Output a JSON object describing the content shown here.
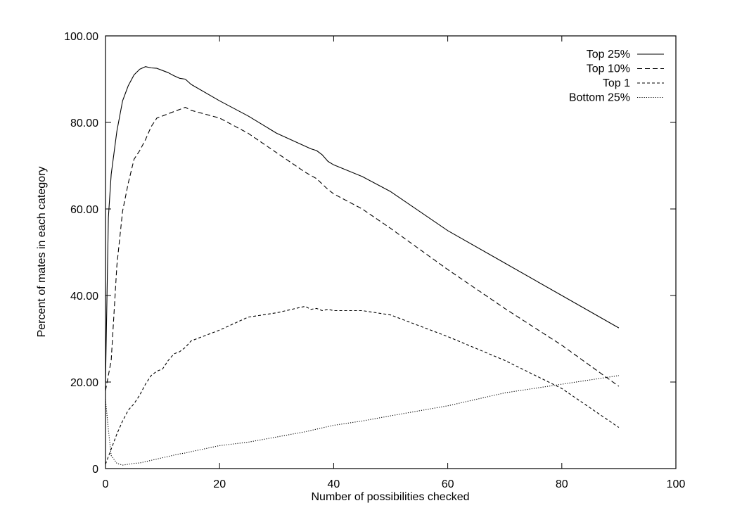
{
  "chart_data": {
    "type": "line",
    "xlabel": "Number of possibilities checked",
    "ylabel": "Percent of mates in each category",
    "xlim": [
      0,
      100
    ],
    "ylim": [
      0,
      100
    ],
    "x_ticks": [
      "0",
      "20",
      "40",
      "60",
      "80",
      "100"
    ],
    "y_ticks": [
      "0",
      "20.00",
      "40.00",
      "60.00",
      "80.00",
      "100.00"
    ],
    "grid": false,
    "legend_position": "top-right",
    "series": [
      {
        "name": "Top 25%",
        "style": "solid",
        "x": [
          0,
          0.5,
          1,
          2,
          3,
          4,
          5,
          6,
          7,
          8,
          9,
          10,
          11,
          12,
          13,
          14,
          15,
          20,
          25,
          30,
          35,
          36,
          37,
          38,
          39,
          40,
          45,
          50,
          60,
          70,
          80,
          90
        ],
        "y": [
          20.0,
          58.0,
          68.0,
          78.0,
          85.0,
          88.5,
          91.0,
          92.3,
          92.9,
          92.6,
          92.5,
          92.0,
          91.5,
          90.8,
          90.2,
          90.0,
          88.8,
          85.0,
          81.5,
          77.5,
          74.5,
          73.9,
          73.5,
          72.5,
          71.0,
          70.2,
          67.5,
          64.0,
          55.0,
          47.5,
          40.0,
          32.5
        ]
      },
      {
        "name": "Top 10%",
        "style": "dashed",
        "x": [
          0,
          1,
          2,
          3,
          4,
          5,
          6,
          7,
          8,
          9,
          10,
          11,
          12,
          13,
          14,
          15,
          20,
          25,
          30,
          35,
          37,
          39,
          40,
          45,
          50,
          60,
          70,
          80,
          90
        ],
        "y": [
          18.0,
          25.0,
          47.0,
          59.5,
          66.0,
          71.5,
          73.5,
          76.0,
          79.0,
          81.0,
          81.5,
          82.0,
          82.5,
          83.0,
          83.5,
          82.8,
          81.0,
          77.5,
          73.0,
          68.5,
          67.0,
          64.5,
          63.5,
          60.0,
          55.5,
          46.0,
          37.0,
          28.5,
          19.0
        ]
      },
      {
        "name": "Top 1",
        "style": "fine-dashed",
        "x": [
          0,
          1,
          2,
          3,
          4,
          5,
          6,
          7,
          8,
          9,
          10,
          11,
          12,
          13,
          14,
          15,
          20,
          25,
          30,
          35,
          36,
          37,
          38,
          39,
          40,
          45,
          50,
          60,
          70,
          80,
          90
        ],
        "y": [
          1.0,
          4.5,
          8.0,
          11.0,
          13.5,
          15.0,
          17.0,
          19.5,
          21.5,
          22.5,
          23.0,
          25.0,
          26.5,
          27.0,
          28.0,
          29.5,
          32.0,
          35.0,
          36.0,
          37.5,
          36.8,
          37.0,
          36.5,
          36.8,
          36.5,
          36.5,
          35.5,
          30.5,
          25.0,
          18.5,
          9.5
        ]
      },
      {
        "name": "Bottom 25%",
        "style": "dotted",
        "x": [
          0,
          0.5,
          1,
          2,
          3,
          4,
          5,
          6,
          7,
          8,
          9,
          10,
          11,
          12,
          13,
          14,
          15,
          20,
          25,
          30,
          35,
          40,
          45,
          50,
          60,
          70,
          80,
          90
        ],
        "y": [
          16.0,
          9.0,
          3.0,
          1.2,
          0.8,
          1.0,
          1.2,
          1.3,
          1.6,
          1.9,
          2.2,
          2.5,
          2.8,
          3.1,
          3.4,
          3.6,
          3.9,
          5.3,
          6.1,
          7.3,
          8.5,
          10.0,
          11.0,
          12.2,
          14.5,
          17.5,
          19.5,
          21.5
        ]
      }
    ]
  }
}
